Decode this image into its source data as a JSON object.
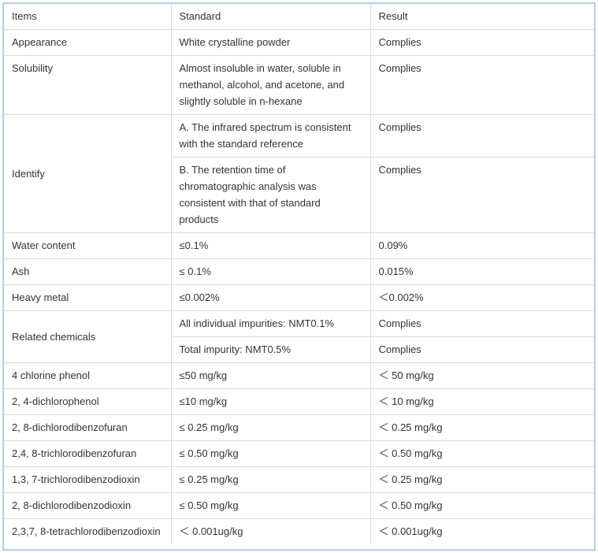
{
  "table": {
    "headers": [
      "Items",
      "Standard",
      "Result"
    ],
    "rows": {
      "appearance": {
        "item": "Appearance",
        "standard": "White crystalline powder",
        "result": "Complies"
      },
      "solubility": {
        "item": "Solubility",
        "standard": "Almost insoluble in water, soluble in methanol, alcohol, and acetone, and slightly soluble in n-hexane",
        "result": "Complies"
      },
      "identify": {
        "item": "Identify",
        "a_standard": "A. The infrared spectrum is consistent with the standard reference",
        "a_result": "Complies",
        "b_standard": "B. The retention time of chromatographic analysis was consistent with that of standard products",
        "b_result": "Complies"
      },
      "water": {
        "item": "Water content",
        "standard": "≤0.1%",
        "result": "0.09%"
      },
      "ash": {
        "item": "Ash",
        "standard": "≤ 0.1%",
        "result": "0.015%"
      },
      "heavy_metal": {
        "item": "Heavy metal",
        "standard": "≤0.002%",
        "result": "＜0.002%"
      },
      "related": {
        "item": "Related chemicals",
        "a_standard": "All individual impurities: NMT0.1%",
        "a_result": "Complies",
        "b_standard": "Total impurity: NMT0.5%",
        "b_result": "Complies"
      },
      "chlorophenol4": {
        "item": "4 chlorine phenol",
        "standard": "≤50 mg/kg",
        "result": "＜ 50 mg/kg"
      },
      "dichlorophenol": {
        "item": "2, 4-dichlorophenol",
        "standard": "≤10 mg/kg",
        "result": "＜ 10 mg/kg"
      },
      "dichlorodibenzofuran": {
        "item": "2, 8-dichlorodibenzofuran",
        "standard": "≤ 0.25 mg/kg",
        "result": "＜ 0.25 mg/kg"
      },
      "trichlorodibenzofuran": {
        "item": "2,4, 8-trichlorodibenzofuran",
        "standard": "≤ 0.50 mg/kg",
        "result": "＜ 0.50 mg/kg"
      },
      "trichlorodibenzodioxin": {
        "item": "1,3, 7-trichlorodibenzodioxin",
        "standard": "≤ 0.25 mg/kg",
        "result": "＜ 0.25 mg/kg"
      },
      "dichlorodibenzodioxin": {
        "item": "2, 8-dichlorodibenzodioxin",
        "standard": "≤ 0.50 mg/kg",
        "result": "＜ 0.50 mg/kg"
      },
      "tetrachlorodibenzodioxin": {
        "item": "2,3,7, 8-tetrachlorodibenzodioxin",
        "standard": "＜ 0.001ug/kg",
        "result": "＜ 0.001ug/kg"
      }
    }
  },
  "colors": {
    "frame_border": "#b6cde3",
    "cell_border": "#dcdcdc",
    "text": "#333333"
  }
}
